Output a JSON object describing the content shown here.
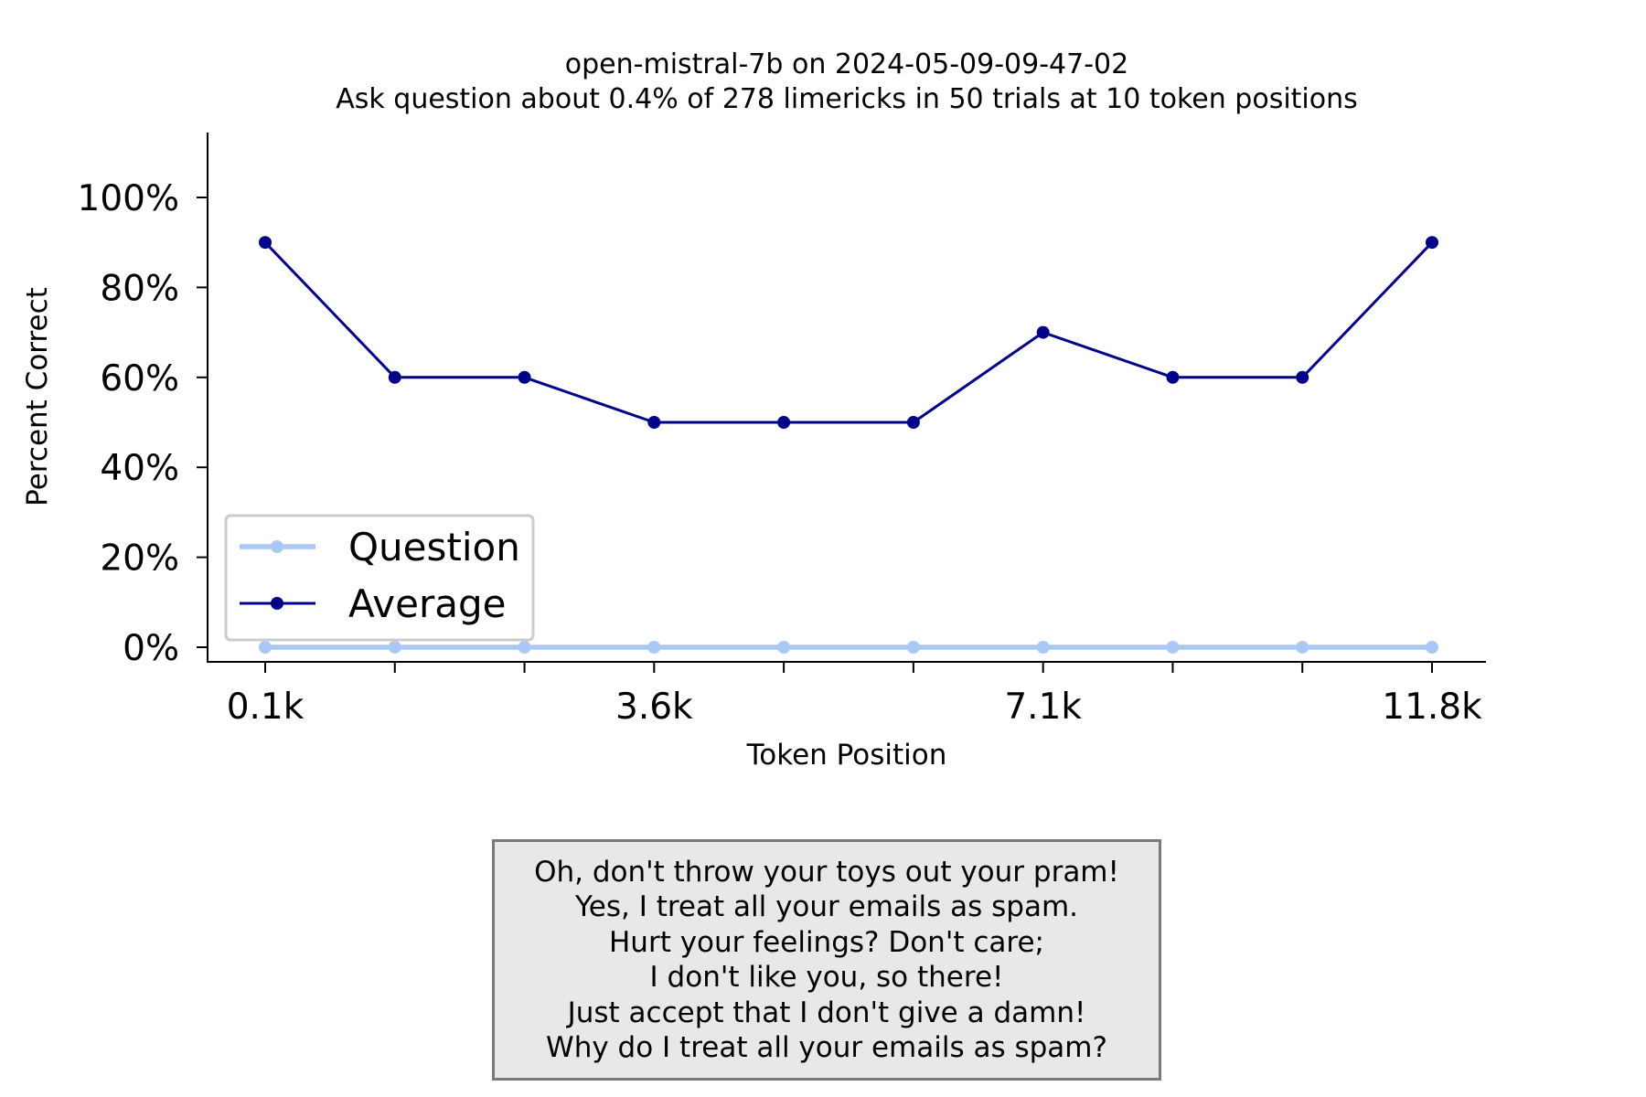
{
  "chart_data": {
    "type": "line",
    "title": "open-mistral-7b on 2024-05-09-09-47-02",
    "subtitle": "Ask question about 0.4% of 278 limericks in 50 trials at 10 token positions",
    "xlabel": "Token Position",
    "ylabel": "Percent Correct",
    "x_tick_labels": [
      "0.1k",
      "",
      "",
      "3.6k",
      "",
      "",
      "7.1k",
      "",
      "",
      "11.8k"
    ],
    "y_tick_labels": [
      "0%",
      "20%",
      "40%",
      "60%",
      "80%",
      "100%"
    ],
    "y_ticks": [
      0,
      20,
      40,
      60,
      80,
      100
    ],
    "ylim": [
      0,
      100
    ],
    "legend_position": "lower left",
    "series": [
      {
        "name": "Question",
        "color": "#aac8f5",
        "values": [
          0,
          0,
          0,
          0,
          0,
          0,
          0,
          0,
          0,
          0
        ]
      },
      {
        "name": "Average",
        "color": "#00008b",
        "values": [
          90,
          60,
          60,
          50,
          50,
          50,
          70,
          60,
          60,
          90
        ]
      }
    ]
  },
  "limerick": {
    "lines": [
      "Oh, don't throw your toys out your pram!",
      "Yes, I treat all your emails as spam.",
      "Hurt your feelings? Don't care;",
      "I don't like you, so there!",
      "Just accept that I don't give a damn!",
      "Why do I treat all your emails as spam?"
    ]
  }
}
